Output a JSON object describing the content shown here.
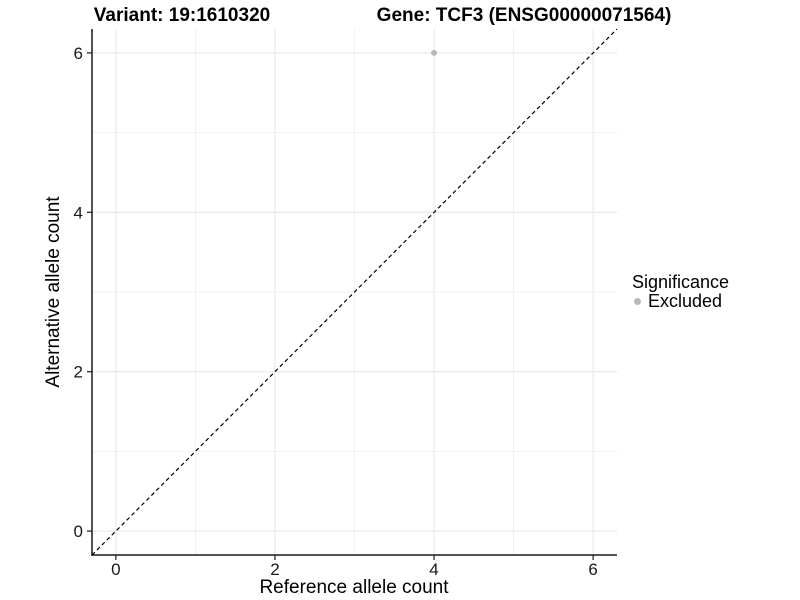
{
  "chart_data": {
    "type": "scatter",
    "title_left": "Variant: 19:1610320",
    "title_right": "Gene: TCF3 (ENSG00000071564)",
    "xlabel": "Reference allele count",
    "ylabel": "Alternative allele count",
    "xlim": [
      -0.3,
      6.3
    ],
    "ylim": [
      -0.3,
      6.3
    ],
    "x_ticks": [
      0,
      2,
      4,
      6
    ],
    "y_ticks": [
      0,
      2,
      4,
      6
    ],
    "grid": {
      "major": true,
      "minor": true,
      "major_color": "#e5e5e5",
      "minor_color": "#f0f0f0"
    },
    "axis_color": "#1a1a1a",
    "reference_line": {
      "equation": "y = x",
      "style": "dashed",
      "color": "#000000"
    },
    "series": [
      {
        "name": "Excluded",
        "color": "#b8b8b8",
        "points": [
          [
            4,
            6
          ]
        ]
      }
    ],
    "legend": {
      "title": "Significance",
      "position": "right",
      "items": [
        {
          "label": "Excluded",
          "color": "#b8b8b8"
        }
      ]
    }
  }
}
